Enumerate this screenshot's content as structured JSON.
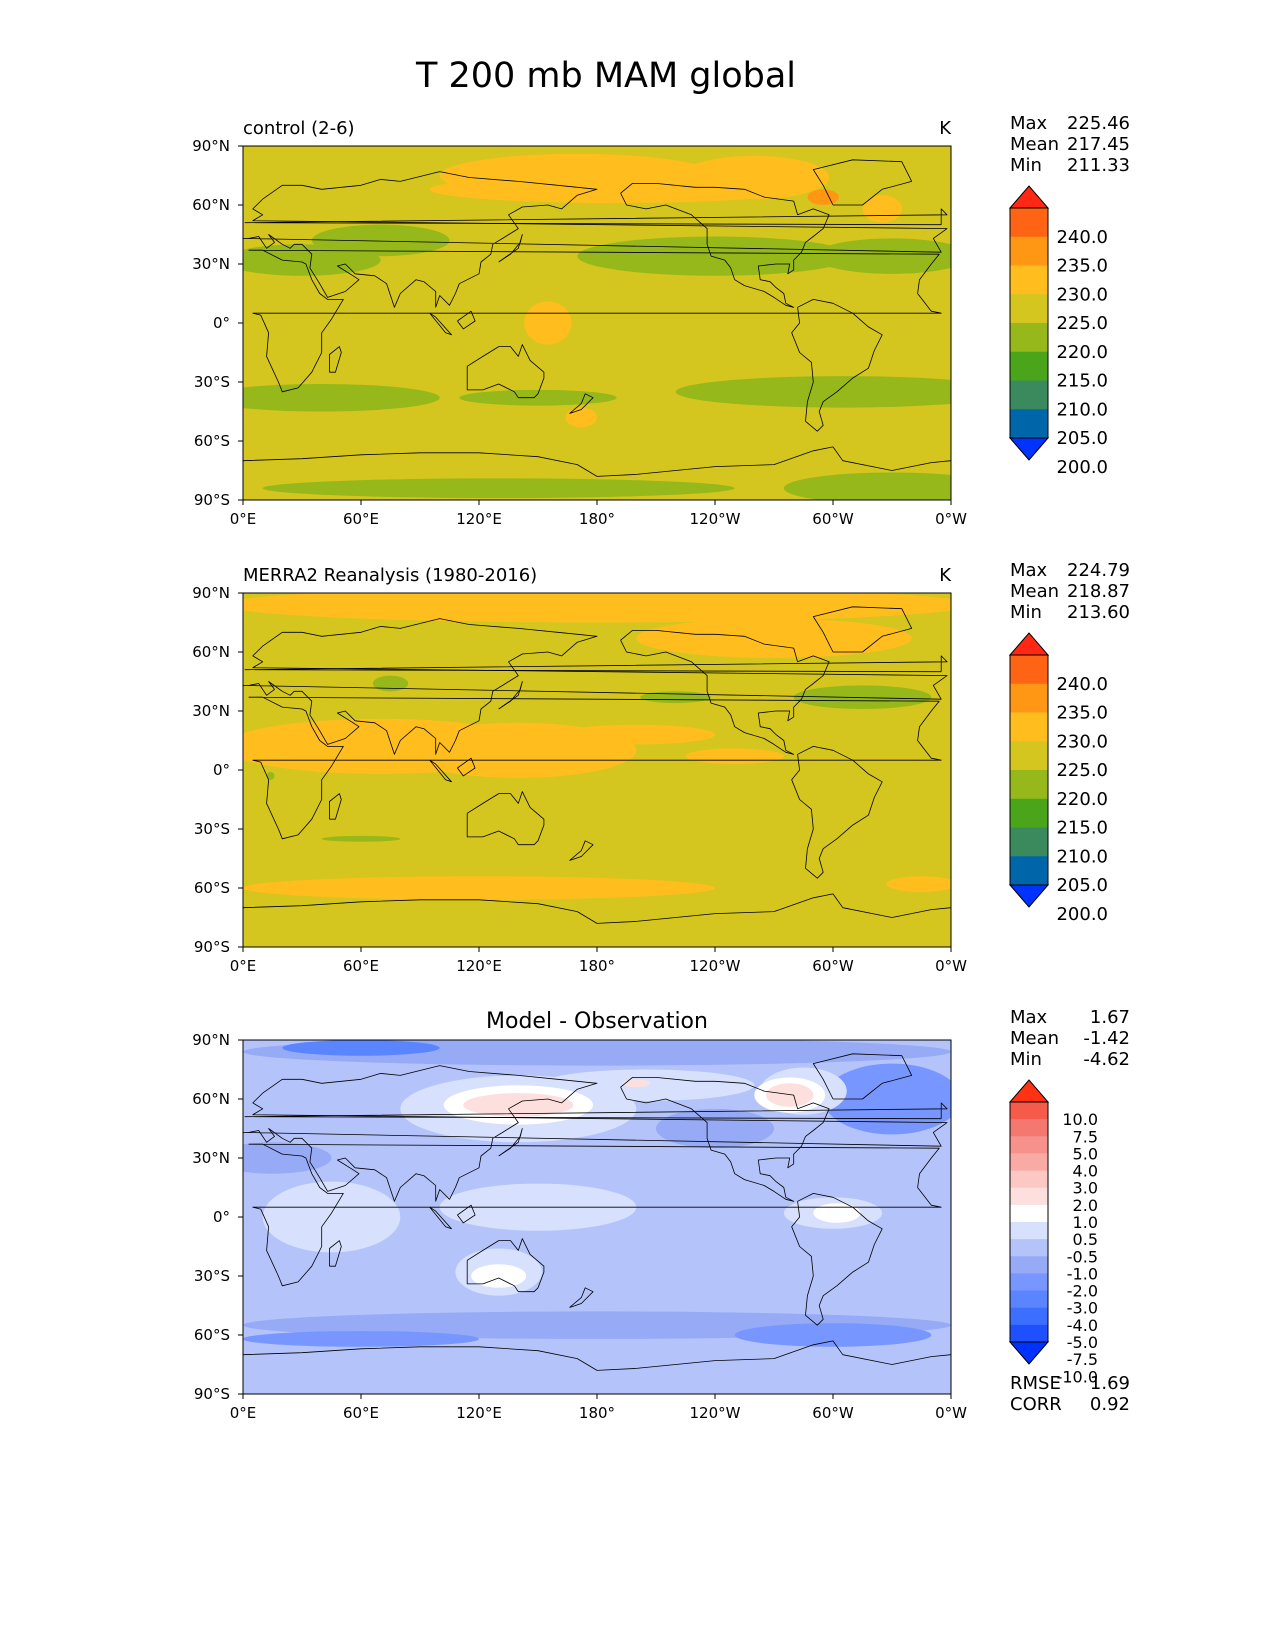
{
  "figure": {
    "title": "T 200 mb MAM global"
  },
  "chart_data": [
    {
      "type": "heatmap",
      "panel": "model",
      "title": "control (2-6)",
      "units": "K",
      "xlim": [
        0,
        360
      ],
      "ylim": [
        -90,
        90
      ],
      "xticks": [
        "0°E",
        "60°E",
        "120°E",
        "180°",
        "120°W",
        "60°W",
        "0°W"
      ],
      "yticks": [
        "90°N",
        "60°N",
        "30°N",
        "0°",
        "30°S",
        "60°S",
        "90°S"
      ],
      "stats": {
        "max_label": "Max",
        "max": "225.46",
        "mean_label": "Mean",
        "mean": "217.45",
        "min_label": "Min",
        "min": "211.33"
      },
      "colorbar": {
        "levels": [
          200,
          205,
          210,
          215,
          220,
          225,
          230,
          235,
          240
        ],
        "labels": [
          "240.0",
          "235.0",
          "230.0",
          "225.0",
          "220.0",
          "215.0",
          "210.0",
          "205.0",
          "200.0"
        ],
        "colors": [
          "#0033ff",
          "#0066aa",
          "#3a8a5e",
          "#4aa51a",
          "#96b81a",
          "#d4c61e",
          "#ffbe1e",
          "#ff9614",
          "#ff6414",
          "#ff2814"
        ]
      },
      "field": {
        "background_level": 5,
        "regions": [
          {
            "lon": 170,
            "lat": 75,
            "rlon": 70,
            "rlat": 11,
            "level": 6
          },
          {
            "lon": 260,
            "lat": 74,
            "rlon": 38,
            "rlat": 11,
            "level": 6
          },
          {
            "lon": 190,
            "lat": 68,
            "rlon": 95,
            "rlat": 7,
            "level": 6
          },
          {
            "lon": 325,
            "lat": 58,
            "rlon": 10,
            "rlat": 7,
            "level": 6
          },
          {
            "lon": 295,
            "lat": 64,
            "rlon": 8,
            "rlat": 4,
            "level": 7
          },
          {
            "lon": 155,
            "lat": 0,
            "rlon": 12,
            "rlat": 11,
            "level": 6
          },
          {
            "lon": 172,
            "lat": -48,
            "rlon": 8,
            "rlat": 5,
            "level": 6
          },
          {
            "lon": 30,
            "lat": 32,
            "rlon": 40,
            "rlat": 8,
            "level": 4
          },
          {
            "lon": 70,
            "lat": 42,
            "rlon": 35,
            "rlat": 8,
            "level": 4
          },
          {
            "lon": 240,
            "lat": 34,
            "rlon": 70,
            "rlat": 10,
            "level": 4
          },
          {
            "lon": 330,
            "lat": 34,
            "rlon": 40,
            "rlat": 9,
            "level": 4
          },
          {
            "lon": 40,
            "lat": -38,
            "rlon": 60,
            "rlat": 7,
            "level": 4
          },
          {
            "lon": 150,
            "lat": -38,
            "rlon": 40,
            "rlat": 4,
            "level": 4
          },
          {
            "lon": 305,
            "lat": -35,
            "rlon": 85,
            "rlat": 8,
            "level": 4
          },
          {
            "lon": 130,
            "lat": -84,
            "rlon": 120,
            "rlat": 5,
            "level": 4
          },
          {
            "lon": 330,
            "lat": -84,
            "rlon": 55,
            "rlat": 8,
            "level": 4
          }
        ]
      }
    },
    {
      "type": "heatmap",
      "panel": "observation",
      "title": "MERRA2 Reanalysis (1980-2016)",
      "units": "K",
      "xlim": [
        0,
        360
      ],
      "ylim": [
        -90,
        90
      ],
      "xticks": [
        "0°E",
        "60°E",
        "120°E",
        "180°",
        "120°W",
        "60°W",
        "0°W"
      ],
      "yticks": [
        "90°N",
        "60°N",
        "30°N",
        "0°",
        "30°S",
        "60°S",
        "90°S"
      ],
      "stats": {
        "max_label": "Max",
        "max": "224.79",
        "mean_label": "Mean",
        "mean": "218.87",
        "min_label": "Min",
        "min": "213.60"
      },
      "colorbar": {
        "levels": [
          200,
          205,
          210,
          215,
          220,
          225,
          230,
          235,
          240
        ],
        "labels": [
          "240.0",
          "235.0",
          "230.0",
          "225.0",
          "220.0",
          "215.0",
          "210.0",
          "205.0",
          "200.0"
        ],
        "colors": [
          "#0033ff",
          "#0066aa",
          "#3a8a5e",
          "#4aa51a",
          "#96b81a",
          "#d4c61e",
          "#ffbe1e",
          "#ff9614",
          "#ff6414",
          "#ff2814"
        ]
      },
      "field": {
        "background_level": 5,
        "regions": [
          {
            "lon": 180,
            "lat": 84,
            "rlon": 190,
            "rlat": 9,
            "level": 6
          },
          {
            "lon": 270,
            "lat": 67,
            "rlon": 70,
            "rlat": 10,
            "level": 6
          },
          {
            "lon": 70,
            "lat": 12,
            "rlon": 80,
            "rlat": 14,
            "level": 6
          },
          {
            "lon": 140,
            "lat": 10,
            "rlon": 60,
            "rlat": 14,
            "level": 6
          },
          {
            "lon": 200,
            "lat": 18,
            "rlon": 40,
            "rlat": 5,
            "level": 6
          },
          {
            "lon": 250,
            "lat": 7,
            "rlon": 25,
            "rlat": 4,
            "level": 6
          },
          {
            "lon": 120,
            "lat": -60,
            "rlon": 120,
            "rlat": 6,
            "level": 6
          },
          {
            "lon": 345,
            "lat": -58,
            "rlon": 18,
            "rlat": 4,
            "level": 6
          },
          {
            "lon": 75,
            "lat": 44,
            "rlon": 9,
            "rlat": 4,
            "level": 4
          },
          {
            "lon": 220,
            "lat": 37,
            "rlon": 18,
            "rlat": 3,
            "level": 4
          },
          {
            "lon": 315,
            "lat": 37,
            "rlon": 35,
            "rlat": 6,
            "level": 4
          },
          {
            "lon": 60,
            "lat": -35,
            "rlon": 20,
            "rlat": 1.5,
            "level": 4
          },
          {
            "lon": 14,
            "lat": -3,
            "rlon": 2,
            "rlat": 2,
            "level": 4
          }
        ]
      }
    },
    {
      "type": "heatmap",
      "panel": "difference",
      "title": "Model - Observation",
      "units": "",
      "xlim": [
        0,
        360
      ],
      "ylim": [
        -90,
        90
      ],
      "xticks": [
        "0°E",
        "60°E",
        "120°E",
        "180°",
        "120°W",
        "60°W",
        "0°W"
      ],
      "yticks": [
        "90°N",
        "60°N",
        "30°N",
        "0°",
        "30°S",
        "60°S",
        "90°S"
      ],
      "stats": {
        "max_label": "Max",
        "max": "1.67",
        "mean_label": "Mean",
        "mean": "-1.42",
        "min_label": "Min",
        "min": "-4.62"
      },
      "metrics": {
        "rmse_label": "RMSE",
        "rmse": "1.69",
        "corr_label": "CORR",
        "corr": "0.92"
      },
      "colorbar": {
        "levels": [
          -10,
          -7.5,
          -5,
          -4,
          -3,
          -2,
          -1,
          -0.5,
          0.5,
          1,
          2,
          3,
          4,
          5,
          7.5,
          10
        ],
        "labels": [
          "10.0",
          "7.5",
          "5.0",
          "4.0",
          "3.0",
          "2.0",
          "1.0",
          "0.5",
          "-0.5",
          "-1.0",
          "-2.0",
          "-3.0",
          "-4.0",
          "-5.0",
          "-7.5",
          "-10.0"
        ],
        "colors": [
          "#0032ff",
          "#1e50ff",
          "#3c6eff",
          "#5a85ff",
          "#7896ff",
          "#96aaf5",
          "#b4c3fa",
          "#d7e0fc",
          "#ffffff",
          "#fde0de",
          "#fcc8c3",
          "#faaaa5",
          "#f7918c",
          "#f57870",
          "#f55a4b",
          "#ff3214"
        ]
      },
      "field": {
        "background_level": 6,
        "regions": [
          {
            "lon": 180,
            "lat": 84,
            "rlon": 180,
            "rlat": 7,
            "level": 5
          },
          {
            "lon": 60,
            "lat": 86,
            "rlon": 40,
            "rlat": 4,
            "level": 3
          },
          {
            "lon": 330,
            "lat": 60,
            "rlon": 35,
            "rlat": 18,
            "level": 4
          },
          {
            "lon": 15,
            "lat": 30,
            "rlon": 30,
            "rlat": 8,
            "level": 5
          },
          {
            "lon": 240,
            "lat": 45,
            "rlon": 30,
            "rlat": 10,
            "level": 5
          },
          {
            "lon": 180,
            "lat": -55,
            "rlon": 180,
            "rlat": 7,
            "level": 5
          },
          {
            "lon": 60,
            "lat": -62,
            "rlon": 60,
            "rlat": 4,
            "level": 4
          },
          {
            "lon": 300,
            "lat": -60,
            "rlon": 50,
            "rlat": 6,
            "level": 4
          },
          {
            "lon": 140,
            "lat": 55,
            "rlon": 60,
            "rlat": 17,
            "level": 7
          },
          {
            "lon": 205,
            "lat": 67,
            "rlon": 55,
            "rlat": 8,
            "level": 7
          },
          {
            "lon": 285,
            "lat": 64,
            "rlon": 22,
            "rlat": 12,
            "level": 7
          },
          {
            "lon": 45,
            "lat": 0,
            "rlon": 35,
            "rlat": 18,
            "level": 7
          },
          {
            "lon": 150,
            "lat": 5,
            "rlon": 50,
            "rlat": 12,
            "level": 7
          },
          {
            "lon": 300,
            "lat": 2,
            "rlon": 25,
            "rlat": 8,
            "level": 7
          },
          {
            "lon": 130,
            "lat": -28,
            "rlon": 22,
            "rlat": 12,
            "level": 7
          },
          {
            "lon": 140,
            "lat": 57,
            "rlon": 38,
            "rlat": 10,
            "level": 8
          },
          {
            "lon": 278,
            "lat": 62,
            "rlon": 18,
            "rlat": 9,
            "level": 8
          },
          {
            "lon": 302,
            "lat": 2,
            "rlon": 12,
            "rlat": 5,
            "level": 8
          },
          {
            "lon": 130,
            "lat": -30,
            "rlon": 14,
            "rlat": 6,
            "level": 8
          },
          {
            "lon": 140,
            "lat": 57,
            "rlon": 28,
            "rlat": 6,
            "level": 9
          },
          {
            "lon": 278,
            "lat": 62,
            "rlon": 12,
            "rlat": 6,
            "level": 9
          },
          {
            "lon": 200,
            "lat": 68,
            "rlon": 7,
            "rlat": 2,
            "level": 9
          }
        ]
      }
    }
  ]
}
